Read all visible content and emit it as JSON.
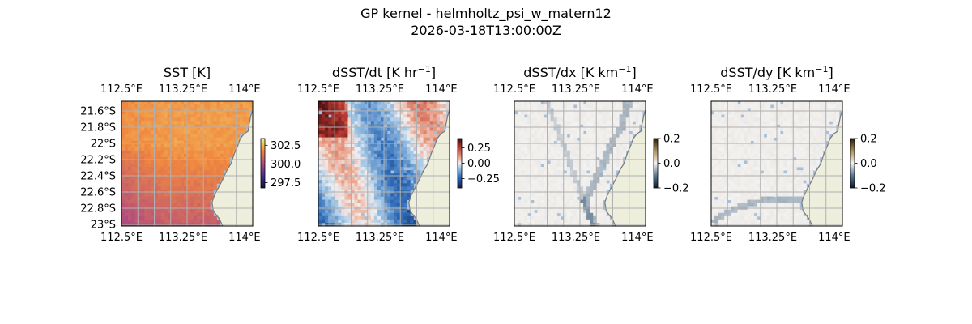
{
  "figure": {
    "title_line1": "GP kernel - helmholtz_psi_w_matern12",
    "title_line2": "2026-03-18T13:00:00Z"
  },
  "chart_data": [
    {
      "type": "heatmap",
      "title": "SST [K]",
      "title_sup": "",
      "title_suffix": "",
      "xlim": [
        112.5,
        114.1
      ],
      "ylim": [
        -23.02,
        -21.48
      ],
      "x_ticks": [
        {
          "v": 112.5,
          "label": "112.5°E"
        },
        {
          "v": 113.25,
          "label": "113.25°E"
        },
        {
          "v": 114.0,
          "label": "114°E"
        }
      ],
      "y_ticks": [
        {
          "v": -21.6,
          "label": "21.6°S"
        },
        {
          "v": -21.8,
          "label": "21.8°S"
        },
        {
          "v": -22.0,
          "label": "22°S"
        },
        {
          "v": -22.2,
          "label": "22.2°S"
        },
        {
          "v": -22.4,
          "label": "22.4°S"
        },
        {
          "v": -22.6,
          "label": "22.6°S"
        },
        {
          "v": -22.8,
          "label": "22.8°S"
        },
        {
          "v": -23.0,
          "label": "23°S"
        }
      ],
      "show_y_labels": true,
      "colormap": "thermal",
      "colorbar": {
        "min": 296.8,
        "max": 303.4,
        "ticks": [
          {
            "v": 302.5,
            "label": "302.5"
          },
          {
            "v": 300.0,
            "label": "300.0"
          },
          {
            "v": 297.5,
            "label": "297.5"
          }
        ]
      },
      "grid": true
    },
    {
      "type": "heatmap",
      "title": "dSST/dt [K hr",
      "title_sup": "−1",
      "title_suffix": "]",
      "xlim": [
        112.5,
        114.1
      ],
      "ylim": [
        -23.02,
        -21.48
      ],
      "x_ticks": [
        {
          "v": 112.5,
          "label": "112.5°E"
        },
        {
          "v": 113.25,
          "label": "113.25°E"
        },
        {
          "v": 114.0,
          "label": "114°E"
        }
      ],
      "y_ticks": [],
      "show_y_labels": false,
      "colormap": "balance",
      "colorbar": {
        "min": -0.4,
        "max": 0.4,
        "ticks": [
          {
            "v": 0.25,
            "label": "0.25"
          },
          {
            "v": 0.0,
            "label": "0.00"
          },
          {
            "v": -0.25,
            "label": "−0.25"
          }
        ]
      },
      "grid": true
    },
    {
      "type": "heatmap",
      "title": "dSST/dx [K km",
      "title_sup": "−1",
      "title_suffix": "]",
      "xlim": [
        112.5,
        114.1
      ],
      "ylim": [
        -23.02,
        -21.48
      ],
      "x_ticks": [
        {
          "v": 112.5,
          "label": "112.5°E"
        },
        {
          "v": 113.25,
          "label": "113.25°E"
        },
        {
          "v": 114.0,
          "label": "114°E"
        }
      ],
      "y_ticks": [],
      "show_y_labels": false,
      "colormap": "diff",
      "colorbar": {
        "min": -0.2,
        "max": 0.2,
        "ticks": [
          {
            "v": 0.2,
            "label": "0.2"
          },
          {
            "v": 0.0,
            "label": "0.0"
          },
          {
            "v": -0.2,
            "label": "−0.2"
          }
        ]
      },
      "grid": true
    },
    {
      "type": "heatmap",
      "title": "dSST/dy [K km",
      "title_sup": "−1",
      "title_suffix": "]",
      "xlim": [
        112.5,
        114.1
      ],
      "ylim": [
        -23.02,
        -21.48
      ],
      "x_ticks": [
        {
          "v": 112.5,
          "label": "112.5°E"
        },
        {
          "v": 113.25,
          "label": "113.25°E"
        },
        {
          "v": 114.0,
          "label": "114°E"
        }
      ],
      "y_ticks": [],
      "show_y_labels": false,
      "colormap": "diff",
      "colorbar": {
        "min": -0.2,
        "max": 0.2,
        "ticks": [
          {
            "v": 0.2,
            "label": "0.2"
          },
          {
            "v": 0.0,
            "label": "0.0"
          },
          {
            "v": -0.2,
            "label": "−0.2"
          }
        ]
      },
      "grid": true
    }
  ],
  "colors": {
    "land": "#eeeedd",
    "ocean_mask": "#a5bfdd",
    "grid": "#b0b0b0",
    "coastline": "#7a7a7a"
  }
}
